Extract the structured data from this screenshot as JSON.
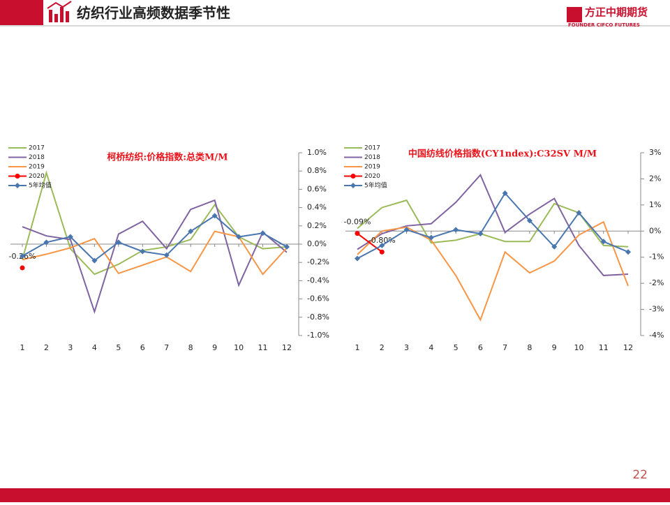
{
  "header": {
    "title": "纺织行业高频数据季节性",
    "logo": "方正中期期货",
    "logo_sub": "FOUNDER CIFCO FUTURES"
  },
  "page_number": "22",
  "chart_data": [
    {
      "type": "line",
      "title": "柯桥纺织:价格指数:总类M/M",
      "categories": [
        1,
        2,
        3,
        4,
        5,
        6,
        7,
        8,
        9,
        10,
        11,
        12
      ],
      "ylim": [
        -1.0,
        1.0
      ],
      "yticks": [
        {
          "value": -1.0,
          "label": "-1.0%"
        },
        {
          "value": -0.8,
          "label": "-0.8%"
        },
        {
          "value": -0.6,
          "label": "-0.6%"
        },
        {
          "value": -0.4,
          "label": "-0.4%"
        },
        {
          "value": -0.2,
          "label": "-0.2%"
        },
        {
          "value": 0,
          "label": "0.0%"
        },
        {
          "value": 0.2,
          "label": "0.2%"
        },
        {
          "value": 0.4,
          "label": "0.4%"
        },
        {
          "value": 0.6,
          "label": "0.6%"
        },
        {
          "value": 0.8,
          "label": "0.8%"
        },
        {
          "value": 1.0,
          "label": "1.0%"
        }
      ],
      "series": [
        {
          "name": "2017",
          "color": "#9bbb59",
          "values": [
            -0.17,
            0.78,
            -0.05,
            -0.33,
            -0.22,
            -0.07,
            -0.03,
            0.05,
            0.43,
            0.08,
            -0.05,
            -0.03
          ]
        },
        {
          "name": "2018",
          "color": "#8064a2",
          "values": [
            0.19,
            0.09,
            0.05,
            -0.74,
            0.11,
            0.25,
            -0.05,
            0.38,
            0.48,
            -0.45,
            0.13,
            -0.09
          ]
        },
        {
          "name": "2019",
          "color": "#f79646",
          "values": [
            -0.17,
            -0.11,
            -0.04,
            0.06,
            -0.32,
            -0.23,
            -0.14,
            -0.3,
            0.14,
            0.08,
            -0.33,
            -0.04
          ]
        },
        {
          "name": "2020",
          "color": "#ff0000",
          "marker": "circle",
          "values": [
            -0.26,
            null,
            null,
            null,
            null,
            null,
            null,
            null,
            null,
            null,
            null,
            null
          ],
          "value_labels": [
            "-0.26%",
            null,
            null,
            null,
            null,
            null,
            null,
            null,
            null,
            null,
            null,
            null
          ]
        },
        {
          "name": "5年均值",
          "color": "#4a76b0",
          "marker": "diamond",
          "values": [
            -0.13,
            0.02,
            0.08,
            -0.18,
            0.02,
            -0.08,
            -0.12,
            0.14,
            0.31,
            0.08,
            0.12,
            -0.03
          ]
        }
      ]
    },
    {
      "type": "line",
      "title": "中国纺线价格指数(CY1ndex):C32SV M/M",
      "categories": [
        1,
        2,
        3,
        4,
        5,
        6,
        7,
        8,
        9,
        10,
        11,
        12
      ],
      "ylim": [
        -4,
        3
      ],
      "yticks": [
        {
          "value": -4,
          "label": "-4%"
        },
        {
          "value": -3,
          "label": "-3%"
        },
        {
          "value": -2,
          "label": "-2%"
        },
        {
          "value": -1,
          "label": "-1%"
        },
        {
          "value": 0,
          "label": "0%"
        },
        {
          "value": 1,
          "label": "1%"
        },
        {
          "value": 2,
          "label": "2%"
        },
        {
          "value": 3,
          "label": "3%"
        }
      ],
      "series": [
        {
          "name": "2017",
          "color": "#9bbb59",
          "values": [
            0.1,
            0.9,
            1.18,
            -0.45,
            -0.35,
            -0.1,
            -0.4,
            -0.4,
            1.05,
            0.7,
            -0.55,
            -0.6
          ]
        },
        {
          "name": "2018",
          "color": "#8064a2",
          "values": [
            -0.7,
            -0.1,
            0.2,
            0.28,
            1.1,
            2.15,
            -0.05,
            0.65,
            1.25,
            -0.55,
            -1.7,
            -1.65
          ]
        },
        {
          "name": "2019",
          "color": "#f79646",
          "values": [
            -0.9,
            0.0,
            0.15,
            -0.35,
            -1.7,
            -3.4,
            -0.8,
            -1.6,
            -1.15,
            -0.15,
            0.35,
            -2.1
          ]
        },
        {
          "name": "2020",
          "color": "#ff0000",
          "marker": "circle",
          "values": [
            -0.09,
            -0.8,
            null,
            null,
            null,
            null,
            null,
            null,
            null,
            null,
            null,
            null
          ],
          "value_labels": [
            "-0.09%",
            "-0.80%",
            null,
            null,
            null,
            null,
            null,
            null,
            null,
            null,
            null,
            null
          ]
        },
        {
          "name": "5年均值",
          "color": "#4a76b0",
          "marker": "diamond",
          "values": [
            -1.05,
            -0.55,
            0.05,
            -0.25,
            0.05,
            -0.1,
            1.45,
            0.4,
            -0.6,
            0.7,
            -0.4,
            -0.8
          ]
        }
      ]
    }
  ]
}
